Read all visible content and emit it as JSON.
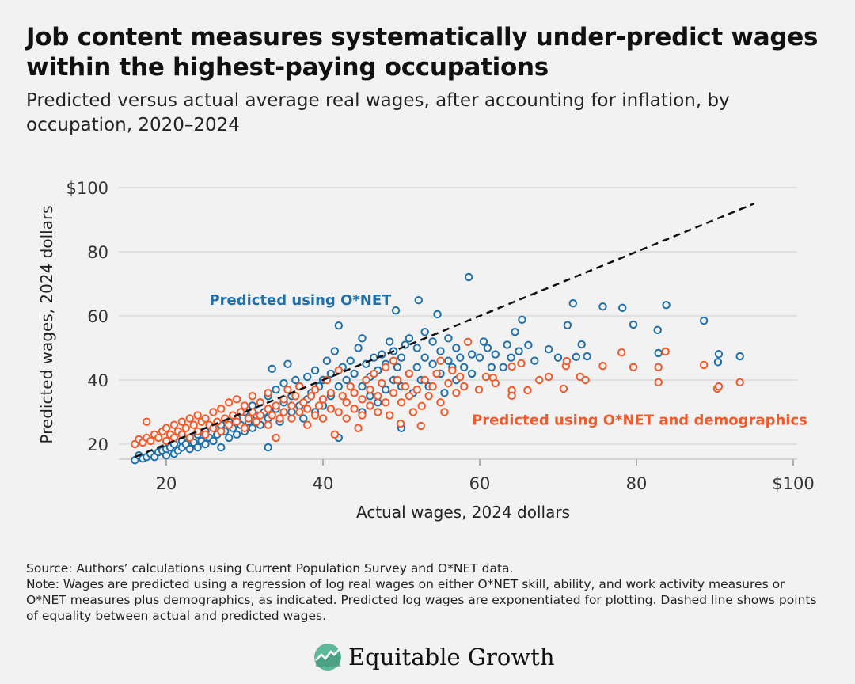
{
  "title": "Job content measures systematically under-predict wages within the highest-paying occupations",
  "subtitle": "Predicted versus actual average real wages, after accounting for inflation, by occupation, 2020–2024",
  "colors": {
    "blue": "#1f6fa8",
    "orange": "#f05a2b",
    "grid": "#d9d9d9",
    "background": "#f2f2f2"
  },
  "chart_data": {
    "type": "scatter",
    "xlabel": "Actual wages, 2024 dollars",
    "ylabel": "Predicted wages, 2024 dollars",
    "xlim": [
      15,
      100
    ],
    "ylim": [
      15,
      100
    ],
    "x_ticks": [
      {
        "value": 20,
        "label": "20"
      },
      {
        "value": 40,
        "label": "40"
      },
      {
        "value": 60,
        "label": "60"
      },
      {
        "value": 80,
        "label": "80"
      },
      {
        "value": 100,
        "label": "$100"
      }
    ],
    "y_ticks": [
      {
        "value": 20,
        "label": "20"
      },
      {
        "value": 40,
        "label": "40"
      },
      {
        "value": 60,
        "label": "60"
      },
      {
        "value": 80,
        "label": "80"
      },
      {
        "value": 100,
        "label": "$100"
      }
    ],
    "grid": true,
    "reference_line": {
      "name": "Equality line",
      "from": [
        16,
        16
      ],
      "to": [
        95,
        95
      ],
      "style": "dashed"
    },
    "series": [
      {
        "name": "Predicted using O*NET",
        "color": "#1f6fa8",
        "label_position": [
          25.5,
          63.5
        ],
        "points": [
          [
            16,
            15
          ],
          [
            16.5,
            16.5
          ],
          [
            17,
            15.5
          ],
          [
            17.5,
            16
          ],
          [
            18,
            17
          ],
          [
            18.5,
            16
          ],
          [
            19,
            17.5
          ],
          [
            19.5,
            18
          ],
          [
            20,
            16.5
          ],
          [
            20,
            18.5
          ],
          [
            20.5,
            19
          ],
          [
            21,
            17
          ],
          [
            21,
            20
          ],
          [
            21.5,
            18
          ],
          [
            22,
            19
          ],
          [
            22,
            21
          ],
          [
            22.5,
            20
          ],
          [
            23,
            18.5
          ],
          [
            23,
            22
          ],
          [
            23.5,
            20.5
          ],
          [
            24,
            19
          ],
          [
            24,
            23
          ],
          [
            24.5,
            21
          ],
          [
            25,
            20
          ],
          [
            25,
            24
          ],
          [
            25.5,
            22
          ],
          [
            26,
            21
          ],
          [
            26,
            25
          ],
          [
            26.5,
            23
          ],
          [
            27,
            19
          ],
          [
            27,
            26
          ],
          [
            27.5,
            24
          ],
          [
            28,
            22
          ],
          [
            28,
            27
          ],
          [
            28.5,
            25
          ],
          [
            29,
            23
          ],
          [
            29,
            28
          ],
          [
            29.5,
            26
          ],
          [
            30,
            24
          ],
          [
            30,
            30
          ],
          [
            30.5,
            27
          ],
          [
            31,
            25
          ],
          [
            31,
            32
          ],
          [
            31.5,
            29
          ],
          [
            32,
            26
          ],
          [
            32,
            33
          ],
          [
            32.5,
            30
          ],
          [
            33,
            19
          ],
          [
            33,
            28
          ],
          [
            33,
            35
          ],
          [
            33.5,
            43.5
          ],
          [
            34,
            31
          ],
          [
            34,
            37
          ],
          [
            34.5,
            27
          ],
          [
            35,
            33
          ],
          [
            35,
            39
          ],
          [
            35.5,
            45
          ],
          [
            36,
            30
          ],
          [
            36,
            35
          ],
          [
            36.5,
            40
          ],
          [
            37,
            32
          ],
          [
            37,
            38
          ],
          [
            37.5,
            28
          ],
          [
            38,
            34
          ],
          [
            38,
            41
          ],
          [
            38.5,
            36
          ],
          [
            39,
            30
          ],
          [
            39,
            43
          ],
          [
            39.5,
            38
          ],
          [
            40,
            32
          ],
          [
            40,
            40
          ],
          [
            40.5,
            46
          ],
          [
            41,
            35
          ],
          [
            41,
            42
          ],
          [
            41.5,
            49
          ],
          [
            42,
            22
          ],
          [
            42,
            38
          ],
          [
            42,
            57
          ],
          [
            42.5,
            44
          ],
          [
            43,
            33
          ],
          [
            43,
            40
          ],
          [
            43.5,
            46
          ],
          [
            44,
            36
          ],
          [
            44,
            42
          ],
          [
            44.5,
            50
          ],
          [
            45,
            30
          ],
          [
            45,
            38
          ],
          [
            45,
            53
          ],
          [
            45.5,
            45
          ],
          [
            46,
            35
          ],
          [
            46,
            41
          ],
          [
            46.5,
            47
          ],
          [
            47,
            33
          ],
          [
            47,
            43
          ],
          [
            47.5,
            48
          ],
          [
            48,
            37
          ],
          [
            48,
            45
          ],
          [
            48.5,
            52
          ],
          [
            49,
            40
          ],
          [
            49,
            49
          ],
          [
            49.3,
            61.7
          ],
          [
            49.5,
            44
          ],
          [
            50,
            25
          ],
          [
            50,
            38
          ],
          [
            50,
            47
          ],
          [
            50.5,
            51
          ],
          [
            51,
            42
          ],
          [
            51,
            53
          ],
          [
            51.5,
            36
          ],
          [
            52,
            44
          ],
          [
            52,
            50
          ],
          [
            52.2,
            64.9
          ],
          [
            52.5,
            40
          ],
          [
            53,
            47
          ],
          [
            53,
            55
          ],
          [
            53.5,
            38
          ],
          [
            54,
            45
          ],
          [
            54,
            52
          ],
          [
            54.6,
            60.5
          ],
          [
            55,
            42
          ],
          [
            55,
            49
          ],
          [
            55.5,
            36
          ],
          [
            56,
            46
          ],
          [
            56,
            53
          ],
          [
            56.5,
            44
          ],
          [
            57,
            40
          ],
          [
            57,
            50
          ],
          [
            57.5,
            47
          ],
          [
            58,
            44
          ],
          [
            58.6,
            72.1
          ],
          [
            59,
            42
          ],
          [
            59,
            48
          ],
          [
            60,
            47
          ],
          [
            60.5,
            52
          ],
          [
            61,
            50
          ],
          [
            61.5,
            44
          ],
          [
            62,
            48
          ],
          [
            63,
            44
          ],
          [
            63.5,
            51
          ],
          [
            64,
            47
          ],
          [
            64.5,
            55
          ],
          [
            65,
            49
          ],
          [
            65.4,
            58.8
          ],
          [
            66.2,
            50.9
          ],
          [
            67,
            46
          ],
          [
            68.8,
            49.6
          ],
          [
            70,
            47
          ],
          [
            71.2,
            57.1
          ],
          [
            71.9,
            63.9
          ],
          [
            72.3,
            47.2
          ],
          [
            73,
            51.1
          ],
          [
            73.7,
            47.4
          ],
          [
            75.7,
            62.9
          ],
          [
            78.2,
            62.5
          ],
          [
            79.6,
            57.3
          ],
          [
            82.7,
            55.6
          ],
          [
            82.8,
            48.4
          ],
          [
            83.8,
            63.4
          ],
          [
            88.6,
            58.5
          ],
          [
            90.4,
            45.6
          ],
          [
            90.5,
            48.1
          ],
          [
            93.2,
            47.4
          ]
        ]
      },
      {
        "name": "Predicted using O*NET and demographics",
        "color": "#f05a2b",
        "label_position": [
          59,
          26
        ],
        "points": [
          [
            16,
            20
          ],
          [
            16.5,
            21.5
          ],
          [
            17,
            20.5
          ],
          [
            17.5,
            22
          ],
          [
            17.5,
            27
          ],
          [
            18,
            21
          ],
          [
            18.5,
            23
          ],
          [
            19,
            22
          ],
          [
            19.5,
            24
          ],
          [
            20,
            21
          ],
          [
            20,
            25
          ],
          [
            20.5,
            23
          ],
          [
            21,
            22
          ],
          [
            21,
            26
          ],
          [
            21.5,
            24
          ],
          [
            22,
            23
          ],
          [
            22,
            27
          ],
          [
            22.5,
            25
          ],
          [
            23,
            22
          ],
          [
            23,
            28
          ],
          [
            23.5,
            26
          ],
          [
            24,
            24
          ],
          [
            24,
            29
          ],
          [
            24.5,
            27
          ],
          [
            25,
            23
          ],
          [
            25,
            28
          ],
          [
            25.5,
            26
          ],
          [
            26,
            25
          ],
          [
            26,
            30
          ],
          [
            26.5,
            27
          ],
          [
            27,
            24
          ],
          [
            27,
            31
          ],
          [
            27.5,
            28
          ],
          [
            28,
            26
          ],
          [
            28,
            33
          ],
          [
            28.5,
            29
          ],
          [
            29,
            27
          ],
          [
            29,
            34
          ],
          [
            29.5,
            30
          ],
          [
            30,
            25
          ],
          [
            30,
            32
          ],
          [
            30.5,
            28
          ],
          [
            31,
            30
          ],
          [
            31,
            35
          ],
          [
            31.5,
            27
          ],
          [
            32,
            29
          ],
          [
            32,
            33
          ],
          [
            33,
            26
          ],
          [
            33,
            31
          ],
          [
            33,
            36
          ],
          [
            33.5,
            29
          ],
          [
            34,
            22
          ],
          [
            34,
            32
          ],
          [
            34.5,
            28
          ],
          [
            35,
            30
          ],
          [
            35,
            34
          ],
          [
            35.5,
            37
          ],
          [
            36,
            28
          ],
          [
            36,
            32
          ],
          [
            36.5,
            35
          ],
          [
            37,
            30
          ],
          [
            37,
            38
          ],
          [
            37.5,
            33
          ],
          [
            38,
            26
          ],
          [
            38,
            31
          ],
          [
            38.5,
            35
          ],
          [
            39,
            29
          ],
          [
            39,
            37
          ],
          [
            39.5,
            32
          ],
          [
            40,
            28
          ],
          [
            40,
            34
          ],
          [
            40.5,
            40
          ],
          [
            41,
            31
          ],
          [
            41,
            36
          ],
          [
            41.5,
            23
          ],
          [
            42,
            30
          ],
          [
            42,
            43
          ],
          [
            42.5,
            35
          ],
          [
            43,
            28
          ],
          [
            43,
            33
          ],
          [
            43.5,
            38
          ],
          [
            44,
            31
          ],
          [
            44,
            36
          ],
          [
            44.5,
            25
          ],
          [
            45,
            29
          ],
          [
            45,
            34
          ],
          [
            45.5,
            40
          ],
          [
            46,
            32
          ],
          [
            46,
            37
          ],
          [
            46.5,
            42
          ],
          [
            47,
            30
          ],
          [
            47,
            35
          ],
          [
            47.5,
            39
          ],
          [
            48,
            33
          ],
          [
            48,
            44
          ],
          [
            48.5,
            29
          ],
          [
            49,
            36
          ],
          [
            49,
            46
          ],
          [
            49.5,
            40
          ],
          [
            49.9,
            26.4
          ],
          [
            50,
            33
          ],
          [
            50.5,
            38
          ],
          [
            51,
            35
          ],
          [
            51,
            42
          ],
          [
            51.5,
            30
          ],
          [
            52,
            37
          ],
          [
            52.5,
            25.7
          ],
          [
            52.6,
            31.9
          ],
          [
            53,
            40
          ],
          [
            53.5,
            35
          ],
          [
            54,
            38
          ],
          [
            54.5,
            42
          ],
          [
            55,
            33
          ],
          [
            55,
            46
          ],
          [
            55.5,
            30
          ],
          [
            56,
            39
          ],
          [
            56.5,
            43
          ],
          [
            57,
            36
          ],
          [
            57.5,
            41
          ],
          [
            58,
            38
          ],
          [
            58.5,
            51.9
          ],
          [
            59.9,
            37
          ],
          [
            60.8,
            41
          ],
          [
            61.7,
            40.7
          ],
          [
            62,
            39
          ],
          [
            64.1,
            36.8
          ],
          [
            64.1,
            35.1
          ],
          [
            64.1,
            44.2
          ],
          [
            65.3,
            45.2
          ],
          [
            66.1,
            36.8
          ],
          [
            67.6,
            40
          ],
          [
            68.8,
            41
          ],
          [
            70.7,
            37.3
          ],
          [
            71,
            44.4
          ],
          [
            71.1,
            45.9
          ],
          [
            72.8,
            41
          ],
          [
            73.5,
            40
          ],
          [
            75.7,
            44.4
          ],
          [
            78.1,
            48.6
          ],
          [
            79.6,
            44
          ],
          [
            82.8,
            39.3
          ],
          [
            82.8,
            44
          ],
          [
            83.7,
            48.9
          ],
          [
            88.6,
            44.7
          ],
          [
            90.3,
            37.3
          ],
          [
            90.5,
            38
          ],
          [
            93.2,
            39.3
          ]
        ]
      }
    ]
  },
  "notes": {
    "source": "Source: Authors’ calculations using Current Population Survey and O*NET data.",
    "note": "Note: Wages are predicted using a regression of log real wages on either O*NET skill, ability, and work activity measures or O*NET measures plus demographics, as indicated. Predicted log wages are exponentiated for plotting. Dashed line shows points of equality between actual and predicted wages."
  },
  "logo": {
    "text": "Equitable Growth"
  }
}
